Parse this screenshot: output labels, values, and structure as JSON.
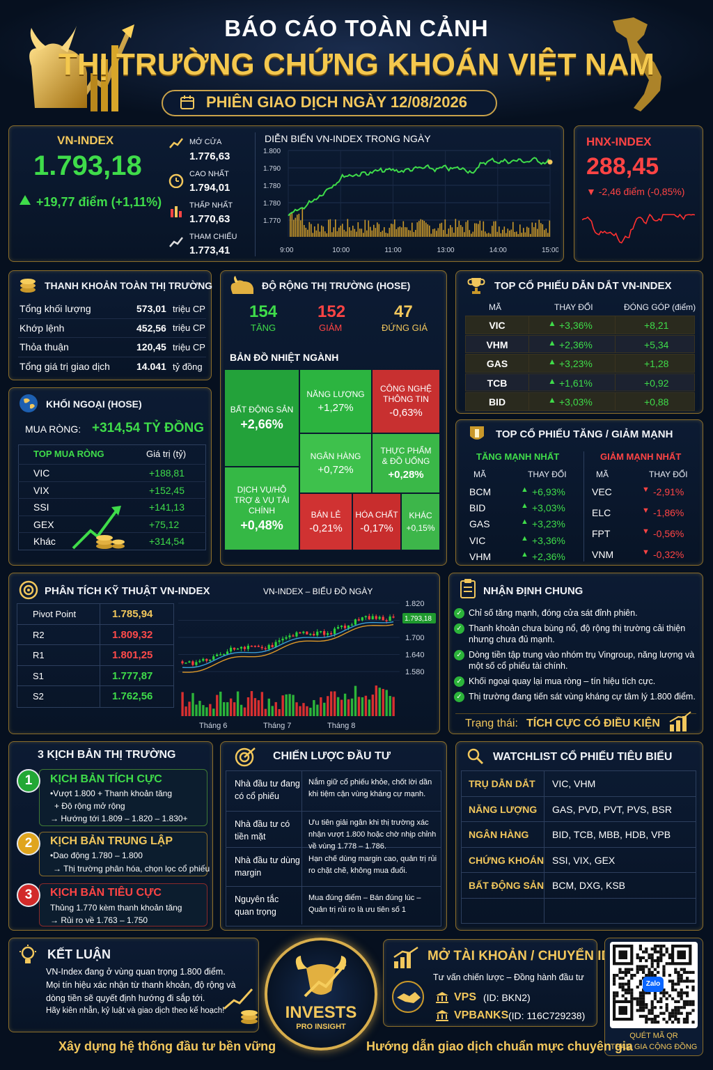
{
  "header": {
    "title1": "BÁO CÁO TOÀN CẢNH",
    "title2": "THỊ TRƯỜNG CHỨNG KHOÁN VIỆT NAM",
    "session": "PHIÊN GIAO DỊCH NGÀY 12/08/2026"
  },
  "vnindex": {
    "label": "VN-INDEX",
    "value": "1.793,18",
    "change": "+19,77 điểm (+1,11%)",
    "open_label": "MỞ CỬA",
    "open": "1.776,63",
    "high_label": "CAO NHẤT",
    "high": "1.794,01",
    "low_label": "THẤP NHẤT",
    "low": "1.770,63",
    "ref_label": "THAM CHIẾU",
    "ref": "1.773,41"
  },
  "intraday": {
    "title": "DIỄN BIẾN VN-INDEX TRONG NGÀY",
    "yticks": [
      "1.800",
      "1.790",
      "1.780",
      "1.780",
      "1.770"
    ],
    "xticks": [
      "9:00",
      "10:00",
      "11:00",
      "13:00",
      "14:00",
      "15:00"
    ]
  },
  "hnx": {
    "label": "HNX-INDEX",
    "value": "288,45",
    "change": "▼ -2,46 điểm (-0,85%)"
  },
  "liquidity": {
    "title": "THANH KHOẢN TOÀN THỊ TRƯỜNG",
    "rows": [
      {
        "k": "Tổng khối lượng",
        "v": "573,01",
        "u": "triệu CP"
      },
      {
        "k": "Khớp lệnh",
        "v": "452,56",
        "u": "triệu CP"
      },
      {
        "k": "Thỏa thuận",
        "v": "120,45",
        "u": "triệu CP"
      },
      {
        "k": "Tổng giá trị giao dịch",
        "v": "14.041",
        "u": "tỷ đồng"
      }
    ]
  },
  "breadth": {
    "title": "ĐỘ RỘNG THỊ TRƯỜNG (HOSE)",
    "up": "154",
    "up_label": "TĂNG",
    "down": "152",
    "down_label": "GIẢM",
    "flat": "47",
    "flat_label": "ĐỨNG GIÁ"
  },
  "heatmap": {
    "title": "BẢN ĐỒ NHIỆT NGÀNH",
    "cells": [
      {
        "name": "BẤT ĐỘNG SẢN",
        "value": "+2,66%"
      },
      {
        "name": "NĂNG LƯỢNG",
        "value": "+1,27%"
      },
      {
        "name": "CÔNG NGHỆ THÔNG TIN",
        "value": "-0,63%"
      },
      {
        "name": "NGÂN HÀNG",
        "value": "+0,72%"
      },
      {
        "name": "THỰC PHẨM & ĐỒ UỐNG",
        "value": "+0,28%"
      },
      {
        "name": "DỊCH VỤ/HỖ TRỢ & VỤ TÀI CHÍNH",
        "value": "+0,48%"
      },
      {
        "name": "BÁN LẺ",
        "value": "-0,21%"
      },
      {
        "name": "HÓA CHẤT",
        "value": "-0,17%"
      },
      {
        "name": "KHÁC",
        "value": "+0,15%"
      }
    ]
  },
  "leaders": {
    "title": "TOP CỔ PHIẾU DẪN DẮT VN-INDEX",
    "h1": "MÃ",
    "h2": "THAY ĐỔI",
    "h3": "ĐÓNG GÓP (điểm)",
    "rows": [
      {
        "c": "VIC",
        "ch": "+3,36%",
        "p": "+8,21"
      },
      {
        "c": "VHM",
        "ch": "+2,36%",
        "p": "+5,34"
      },
      {
        "c": "GAS",
        "ch": "+3,23%",
        "p": "+1,28"
      },
      {
        "c": "TCB",
        "ch": "+1,61%",
        "p": "+0,92"
      },
      {
        "c": "BID",
        "ch": "+3,03%",
        "p": "+0,88"
      }
    ]
  },
  "foreign": {
    "title": "KHỐI NGOẠI (HOSE)",
    "net_label": "MUA RÒNG:",
    "net": "+314,54 TỶ ĐỒNG",
    "h1": "TOP MUA RÒNG",
    "h2": "Giá trị (tỷ)",
    "rows": [
      {
        "c": "VIC",
        "v": "+188,81"
      },
      {
        "c": "VIX",
        "v": "+152,45"
      },
      {
        "c": "SSI",
        "v": "+141,13"
      },
      {
        "c": "GEX",
        "v": "+75,12"
      },
      {
        "c": "Khác",
        "v": "+314,54"
      }
    ]
  },
  "movers": {
    "title": "TOP CỔ PHIẾU TĂNG / GIẢM MẠNH",
    "up_title": "TĂNG MẠNH NHẤT",
    "down_title": "GIẢM MẠNH NHẤT",
    "h1": "MÃ",
    "h2": "THAY ĐỔI",
    "up": [
      {
        "c": "BCM",
        "v": "+6,93%"
      },
      {
        "c": "BID",
        "v": "+3,03%"
      },
      {
        "c": "GAS",
        "v": "+3,23%"
      },
      {
        "c": "VIC",
        "v": "+3,36%"
      },
      {
        "c": "VHM",
        "v": "+2,36%"
      }
    ],
    "down": [
      {
        "c": "VEC",
        "v": "-2,91%"
      },
      {
        "c": "ELC",
        "v": "-1,86%"
      },
      {
        "c": "FPT",
        "v": "-0,56%"
      },
      {
        "c": "VNM",
        "v": "-0,32%"
      }
    ]
  },
  "technical": {
    "title": "PHÂN TÍCH KỸ THUẬT VN-INDEX",
    "rows": [
      {
        "k": "Pivot Point",
        "v": "1.785,94",
        "color": "#f2c75c"
      },
      {
        "k": "R2",
        "v": "1.809,32",
        "color": "#ff4a4a"
      },
      {
        "k": "R1",
        "v": "1.801,25",
        "color": "#ff4a4a"
      },
      {
        "k": "S1",
        "v": "1.777,87",
        "color": "#3fdc4a"
      },
      {
        "k": "S2",
        "v": "1.762,56",
        "color": "#3fdc4a"
      }
    ],
    "chart_title": "VN-INDEX – BIỂU ĐỒ NGÀY",
    "yticks": [
      "1.820",
      "1.760",
      "1.700",
      "1.640",
      "1.580"
    ],
    "last": "1.793,18",
    "months": [
      "Tháng 6",
      "Tháng 7",
      "Tháng 8"
    ]
  },
  "outlook": {
    "title": "NHẬN ĐỊNH CHUNG",
    "items": [
      "Chỉ số tăng mạnh, đóng cửa sát đỉnh phiên.",
      "Thanh khoản chưa bùng nổ, độ rộng thị trường cải thiện nhưng chưa đủ mạnh.",
      "Dòng tiền tập trung vào nhóm trụ Vingroup, năng lượng và một số cổ phiếu tài chính.",
      "Khối ngoại quay lại mua ròng – tín hiệu tích cực.",
      "Thị trường đang tiến sát vùng kháng cự tâm lý 1.800 điểm."
    ],
    "status_label": "Trạng thái:",
    "status": "TÍCH CỰC CÓ ĐIỀU KIỆN"
  },
  "scenarios": {
    "title": "3 KỊCH BẢN THỊ TRƯỜNG",
    "items": [
      {
        "n": "1",
        "t": "KỊCH BẢN TÍCH CỰC",
        "l1": "•Vượt 1.800 + Thanh khoản tăng",
        "l2": "+ Độ rộng mở rộng",
        "l3": "→ Hướng tới 1.809 – 1.820 – 1.830+"
      },
      {
        "n": "2",
        "t": "KỊCH BẢN TRUNG LẬP",
        "l1": "•Dao động 1.780 – 1.800",
        "l2": "→ Thị trường phân hóa, chọn lọc cổ phiếu",
        "l3": ""
      },
      {
        "n": "3",
        "t": "KỊCH BẢN TIÊU CỰC",
        "l1": "Thủng 1.770 kèm thanh khoản tăng",
        "l2": "→ Rủi ro về 1.763 – 1.750",
        "l3": ""
      }
    ]
  },
  "strategy": {
    "title": "CHIẾN LƯỢC ĐẦU TƯ",
    "rows": [
      {
        "k": "Nhà đầu tư đang có cổ phiếu",
        "v": "Nắm giữ cổ phiếu khỏe, chốt lời dần khi tiệm cận vùng kháng cự mạnh."
      },
      {
        "k": "Nhà đầu tư có tiền mặt",
        "v": "Ưu tiên giải ngân khi thị trường xác nhận vượt 1.800 hoặc chờ nhịp chỉnh về vùng 1.778 – 1.786."
      },
      {
        "k": "Nhà đầu tư dùng margin",
        "v": "Hạn chế dùng margin cao, quản trị rủi ro chặt chẽ, không mua đuổi."
      },
      {
        "k": "Nguyên tắc quan trọng",
        "v": "Mua đúng điểm – Bán đúng lúc – Quản trị rủi ro là ưu tiên số 1"
      }
    ]
  },
  "watchlist": {
    "title": "WATCHLIST CỔ PHIẾU TIÊU BIỂU",
    "rows": [
      {
        "k": "TRỤ DẪN DẮT",
        "v": "VIC, VHM"
      },
      {
        "k": "NĂNG LƯỢNG",
        "v": "GAS, PVD, PVT, PVS, BSR"
      },
      {
        "k": "NGÂN HÀNG",
        "v": "BID, TCB, MBB, HDB, VPB"
      },
      {
        "k": "CHỨNG KHOÁN",
        "v": "SSI, VIX, GEX"
      },
      {
        "k": "BẤT ĐỘNG SẢN",
        "v": "BCM, DXG, KSB"
      }
    ]
  },
  "conclusion": {
    "title": "KẾT LUẬN",
    "l1": "VN-Index đang ở vùng quan trọng 1.800 điểm.",
    "l2": "Mọi tín hiệu xác nhận từ thanh khoản, độ rộng và",
    "l3": "dòng tiền sẽ quyết định hướng đi sắp tới.",
    "l4": "Hãy kiên nhẫn, kỷ luật và giao dịch theo kế hoạch!"
  },
  "logo": {
    "name": "INVESTS",
    "sub": "PRO INSIGHT"
  },
  "account": {
    "title": "MỞ TÀI KHOẢN / CHUYỂN ID",
    "sub": "Tư vấn chiến lược – Đồng hành đầu tư",
    "b1": "VPS",
    "id1": "(ID: BKN2)",
    "b2": "VPBANKS",
    "id2": "(ID: 116C729238)"
  },
  "qr": {
    "badge": "Zalo",
    "l1": "QUÉT MÃ QR",
    "l2": "THAM GIA CỘNG ĐỒNG"
  },
  "footer": {
    "left": "Xây dựng hệ thống đầu tư bền vững",
    "right": "Hướng dẫn giao dịch chuẩn mực chuyên gia"
  }
}
